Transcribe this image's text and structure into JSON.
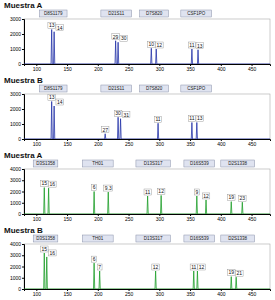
{
  "chart_data": [
    {
      "type": "line",
      "title": "Muestra A",
      "color": "#2433a8",
      "xlim": [
        80,
        480
      ],
      "xticks": [
        100,
        150,
        200,
        250,
        300,
        350,
        400,
        450
      ],
      "ylim": [
        0,
        3000
      ],
      "yticks": [
        0,
        1000,
        2000,
        3000
      ],
      "x": [
        80,
        124,
        125,
        126,
        128,
        129,
        130,
        228,
        229,
        230,
        232,
        233,
        234,
        286,
        287,
        288,
        294,
        295,
        296,
        352,
        353,
        354,
        362,
        363,
        364,
        480
      ],
      "values": [
        0,
        0,
        2300,
        0,
        0,
        2150,
        0,
        0,
        1550,
        0,
        0,
        1450,
        0,
        0,
        1050,
        0,
        0,
        1000,
        0,
        0,
        1000,
        0,
        0,
        950,
        0,
        0
      ],
      "loci": [
        {
          "label": "D8S1179",
          "start": 105,
          "end": 150
        },
        {
          "label": "D21S11",
          "start": 205,
          "end": 255
        },
        {
          "label": "D7S820",
          "start": 268,
          "end": 315
        },
        {
          "label": "CSF1PO",
          "start": 335,
          "end": 385
        }
      ],
      "annotations": [
        {
          "text": "13",
          "x": 125,
          "y": 2300
        },
        {
          "text": "14",
          "x": 129,
          "y": 2150
        },
        {
          "text": "29",
          "x": 229,
          "y": 1550
        },
        {
          "text": "30",
          "x": 233,
          "y": 1450
        },
        {
          "text": "10",
          "x": 287,
          "y": 1050
        },
        {
          "text": "12",
          "x": 295,
          "y": 1000
        },
        {
          "text": "11",
          "x": 353,
          "y": 1000
        },
        {
          "text": "13",
          "x": 363,
          "y": 950
        }
      ]
    },
    {
      "type": "line",
      "title": "Muestra B",
      "color": "#2433a8",
      "xlim": [
        80,
        480
      ],
      "xticks": [
        100,
        150,
        200,
        250,
        300,
        350,
        400,
        450
      ],
      "ylim": [
        0,
        3000
      ],
      "yticks": [
        0,
        1000,
        2000,
        3000
      ],
      "x": [
        80,
        124,
        125,
        126,
        128,
        129,
        130,
        211,
        212,
        213,
        232,
        233,
        234,
        236,
        237,
        238,
        297,
        298,
        299,
        352,
        353,
        354,
        360,
        361,
        362,
        480
      ],
      "values": [
        0,
        0,
        2500,
        0,
        0,
        2200,
        0,
        0,
        350,
        0,
        0,
        1450,
        0,
        0,
        1350,
        0,
        0,
        1050,
        0,
        0,
        1100,
        0,
        0,
        1100,
        0,
        0
      ],
      "loci": [
        {
          "label": "D8S1179",
          "start": 105,
          "end": 150
        },
        {
          "label": "D21S11",
          "start": 205,
          "end": 255
        },
        {
          "label": "D7S820",
          "start": 268,
          "end": 315
        },
        {
          "label": "CSF1PO",
          "start": 335,
          "end": 385
        }
      ],
      "annotations": [
        {
          "text": "13",
          "x": 125,
          "y": 2500
        },
        {
          "text": "14",
          "x": 129,
          "y": 2200
        },
        {
          "text": "27",
          "x": 212,
          "y": 350
        },
        {
          "text": "30",
          "x": 233,
          "y": 1450
        },
        {
          "text": "31",
          "x": 237,
          "y": 1350
        },
        {
          "text": "11",
          "x": 298,
          "y": 1050
        },
        {
          "text": "11",
          "x": 353,
          "y": 1100
        },
        {
          "text": "13",
          "x": 361,
          "y": 1100
        }
      ]
    },
    {
      "type": "line",
      "title": "Muestra A",
      "color": "#1e9e2a",
      "xlim": [
        80,
        480
      ],
      "xticks": [
        100,
        150,
        200,
        250,
        300,
        350,
        400,
        450
      ],
      "ylim": [
        0,
        4000
      ],
      "yticks": [
        0,
        1000,
        2000,
        3000,
        4000
      ],
      "x": [
        80,
        112,
        113,
        114,
        119,
        120,
        121,
        193,
        194,
        195,
        216,
        217,
        218,
        280,
        281,
        282,
        302,
        303,
        304,
        360,
        361,
        362,
        375,
        376,
        377,
        416,
        417,
        418,
        434,
        435,
        436,
        480
      ],
      "values": [
        0,
        0,
        2350,
        0,
        0,
        2300,
        0,
        0,
        2000,
        0,
        0,
        1950,
        0,
        0,
        1600,
        0,
        0,
        1650,
        0,
        0,
        1600,
        0,
        0,
        1250,
        0,
        0,
        1100,
        0,
        0,
        1050,
        0,
        0
      ],
      "loci": [
        {
          "label": "D3S1358",
          "start": 95,
          "end": 135
        },
        {
          "label": "TH01",
          "start": 175,
          "end": 225
        },
        {
          "label": "D13S317",
          "start": 262,
          "end": 318
        },
        {
          "label": "D16S539",
          "start": 340,
          "end": 390
        },
        {
          "label": "D2S1338",
          "start": 400,
          "end": 455
        }
      ],
      "annotations": [
        {
          "text": "15",
          "x": 113,
          "y": 2350
        },
        {
          "text": "16",
          "x": 120,
          "y": 2300
        },
        {
          "text": "6",
          "x": 194,
          "y": 2000
        },
        {
          "text": "9.3",
          "x": 217,
          "y": 1950
        },
        {
          "text": "11",
          "x": 281,
          "y": 1600
        },
        {
          "text": "12",
          "x": 303,
          "y": 1650
        },
        {
          "text": "9",
          "x": 361,
          "y": 1600
        },
        {
          "text": "12",
          "x": 376,
          "y": 1250
        },
        {
          "text": "19",
          "x": 417,
          "y": 1100
        },
        {
          "text": "23",
          "x": 435,
          "y": 1050
        }
      ]
    },
    {
      "type": "line",
      "title": "Muestra B",
      "color": "#1e9e2a",
      "xlim": [
        80,
        480
      ],
      "xticks": [
        100,
        150,
        200,
        250,
        300,
        350,
        400,
        450
      ],
      "ylim": [
        0,
        4000
      ],
      "yticks": [
        0,
        1000,
        2000,
        3000,
        4000
      ],
      "x": [
        80,
        112,
        113,
        114,
        116,
        117,
        118,
        193,
        194,
        195,
        202,
        203,
        204,
        293,
        294,
        295,
        355,
        356,
        357,
        361,
        362,
        363,
        416,
        417,
        418,
        424,
        425,
        426,
        480
      ],
      "values": [
        0,
        0,
        3200,
        0,
        0,
        2850,
        0,
        0,
        2300,
        0,
        0,
        1600,
        0,
        0,
        1600,
        0,
        0,
        1600,
        0,
        0,
        1600,
        0,
        0,
        1100,
        0,
        0,
        1050,
        0,
        0
      ],
      "loci": [
        {
          "label": "D3S1358",
          "start": 95,
          "end": 135
        },
        {
          "label": "TH01",
          "start": 175,
          "end": 225
        },
        {
          "label": "D13S317",
          "start": 262,
          "end": 318
        },
        {
          "label": "D16S539",
          "start": 340,
          "end": 390
        },
        {
          "label": "D2S1338",
          "start": 400,
          "end": 455
        }
      ],
      "annotations": [
        {
          "text": "15",
          "x": 113,
          "y": 3200
        },
        {
          "text": "16",
          "x": 117,
          "y": 2850
        },
        {
          "text": "6",
          "x": 194,
          "y": 2300
        },
        {
          "text": "7",
          "x": 203,
          "y": 1600
        },
        {
          "text": "12",
          "x": 294,
          "y": 1600
        },
        {
          "text": "11",
          "x": 356,
          "y": 1600
        },
        {
          "text": "12",
          "x": 362,
          "y": 1600
        },
        {
          "text": "19",
          "x": 417,
          "y": 1100
        },
        {
          "text": "21",
          "x": 425,
          "y": 1050
        }
      ]
    }
  ]
}
